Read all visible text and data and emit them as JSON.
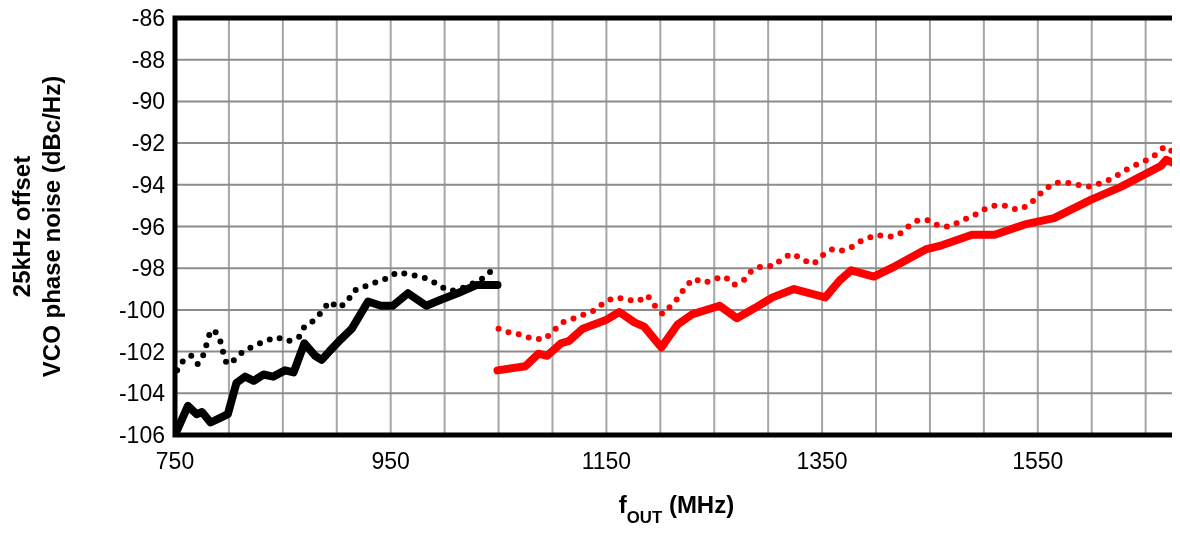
{
  "chart_data": {
    "type": "line",
    "xlabel": "f$_{OUT}$ (MHz)",
    "ylabel": "25kHz offset\nVCO phase noise (dBc/Hz)",
    "xlim": [
      750,
      1680
    ],
    "xticks": [
      750,
      {
        "value": 800,
        "label": null
      },
      {
        "value": 850,
        "label": null
      },
      {
        "value": 900,
        "label": null
      },
      950,
      {
        "value": 1000,
        "label": null
      },
      {
        "value": 1050,
        "label": null
      },
      {
        "value": 1100,
        "label": null
      },
      1150,
      {
        "value": 1200,
        "label": null
      },
      {
        "value": 1250,
        "label": null
      },
      {
        "value": 1300,
        "label": null
      },
      1350,
      {
        "value": 1400,
        "label": null
      },
      {
        "value": 1450,
        "label": null
      },
      {
        "value": 1500,
        "label": null
      },
      1550,
      {
        "value": 1600,
        "label": null
      },
      {
        "value": 1650,
        "label": null
      }
    ],
    "ylim": [
      -106,
      -86
    ],
    "yticks": [
      -106,
      -104,
      -102,
      -100,
      -98,
      -96,
      -94,
      -92,
      -90,
      -88,
      -86
    ],
    "grid": true,
    "marker": "none",
    "series": [
      {
        "color": "#000000",
        "line_style": "solid",
        "x": [
          750,
          762,
          770,
          775,
          783,
          791,
          799,
          807,
          815,
          823,
          832,
          841,
          852,
          860,
          870,
          880,
          886,
          893,
          904,
          914,
          929,
          941,
          952,
          966,
          983,
          997,
          1012,
          1030,
          1049
        ],
        "values": [
          -106,
          -104.6,
          -105,
          -104.9,
          -105.4,
          -105.2,
          -105,
          -103.5,
          -103.2,
          -103.4,
          -103.1,
          -103.2,
          -102.9,
          -103,
          -101.6,
          -102.2,
          -102.4,
          -102,
          -101.4,
          -100.9,
          -99.6,
          -99.8,
          -99.8,
          -99.2,
          -99.8,
          -99.5,
          -99.2,
          -98.8,
          -98.8
        ]
      },
      {
        "color": "#000000",
        "line_style": "dotted",
        "x": [
          752,
          758,
          765,
          771,
          777,
          780,
          783,
          787,
          792,
          795,
          798,
          805,
          813,
          824,
          834,
          844,
          855,
          865,
          870,
          879,
          886,
          893,
          902,
          910,
          915,
          925,
          935,
          946,
          956,
          967,
          978,
          988,
          997,
          1006,
          1020,
          1035,
          1044
        ],
        "values": [
          -102.9,
          -102.4,
          -102.2,
          -102.6,
          -102.1,
          -101.5,
          -101,
          -101,
          -101.5,
          -102.1,
          -102.6,
          -102.4,
          -102,
          -101.7,
          -101.5,
          -101.3,
          -101.5,
          -101.3,
          -100.8,
          -100.5,
          -100.1,
          -99.6,
          -99.9,
          -99.6,
          -99.1,
          -98.9,
          -98.7,
          -98.5,
          -98.2,
          -98.3,
          -98.4,
          -98.6,
          -98.9,
          -99.1,
          -98.9,
          -98.5,
          -98.1
        ]
      },
      {
        "color": "#ff0000",
        "line_style": "solid",
        "x": [
          1049,
          1075,
          1087,
          1095,
          1108,
          1115,
          1128,
          1149,
          1162,
          1176,
          1185,
          1201,
          1216,
          1230,
          1255,
          1271,
          1288,
          1304,
          1324,
          1353,
          1366,
          1377,
          1398,
          1418,
          1446,
          1461,
          1489,
          1510,
          1538,
          1565,
          1600,
          1627,
          1664,
          1669,
          1678
        ],
        "values": [
          -102.9,
          -102.7,
          -102.1,
          -102.2,
          -101.6,
          -101.5,
          -100.9,
          -100.5,
          -100.1,
          -100.6,
          -100.8,
          -101.8,
          -100.7,
          -100.2,
          -99.8,
          -100.4,
          -99.9,
          -99.4,
          -99,
          -99.4,
          -98.6,
          -98.1,
          -98.4,
          -97.9,
          -97.1,
          -96.9,
          -96.4,
          -96.4,
          -95.9,
          -95.6,
          -94.7,
          -94.1,
          -93.1,
          -92.8,
          -93
        ]
      },
      {
        "color": "#ff0000",
        "line_style": "dotted",
        "x": [
          1050,
          1061,
          1072,
          1082,
          1093,
          1101,
          1109,
          1120,
          1130,
          1140,
          1149,
          1159,
          1169,
          1179,
          1188,
          1195,
          1202,
          1210,
          1217,
          1223,
          1231,
          1241,
          1251,
          1260,
          1268,
          1277,
          1285,
          1294,
          1305,
          1314,
          1323,
          1332,
          1342,
          1350,
          1359,
          1366,
          1377,
          1386,
          1400,
          1411,
          1421,
          1430,
          1439,
          1449,
          1459,
          1469,
          1480,
          1490,
          1499,
          1509,
          1520,
          1531,
          1541,
          1549,
          1557,
          1566,
          1577,
          1587,
          1599,
          1609,
          1619,
          1628,
          1638,
          1648,
          1658,
          1667,
          1673,
          1679
        ],
        "values": [
          -100.9,
          -101.1,
          -101.2,
          -101.4,
          -101.4,
          -101,
          -100.6,
          -100.4,
          -100.2,
          -100,
          -99.6,
          -99.4,
          -99.5,
          -99.6,
          -99.3,
          -99.8,
          -100.2,
          -99.8,
          -99.4,
          -98.9,
          -98.5,
          -98.7,
          -98.5,
          -98.4,
          -98.8,
          -98.6,
          -98.1,
          -97.9,
          -97.9,
          -97.5,
          -97.3,
          -97.6,
          -97.8,
          -97.4,
          -97.1,
          -97.2,
          -97,
          -96.7,
          -96.4,
          -96.5,
          -96.4,
          -96,
          -95.7,
          -95.7,
          -96,
          -96,
          -95.7,
          -95.5,
          -95.2,
          -95,
          -95,
          -95.2,
          -95,
          -94.6,
          -94.2,
          -93.9,
          -93.9,
          -94,
          -94.1,
          -93.9,
          -93.7,
          -93.4,
          -93.1,
          -92.9,
          -92.6,
          -92.2,
          -92.4,
          -92.1
        ]
      }
    ]
  }
}
